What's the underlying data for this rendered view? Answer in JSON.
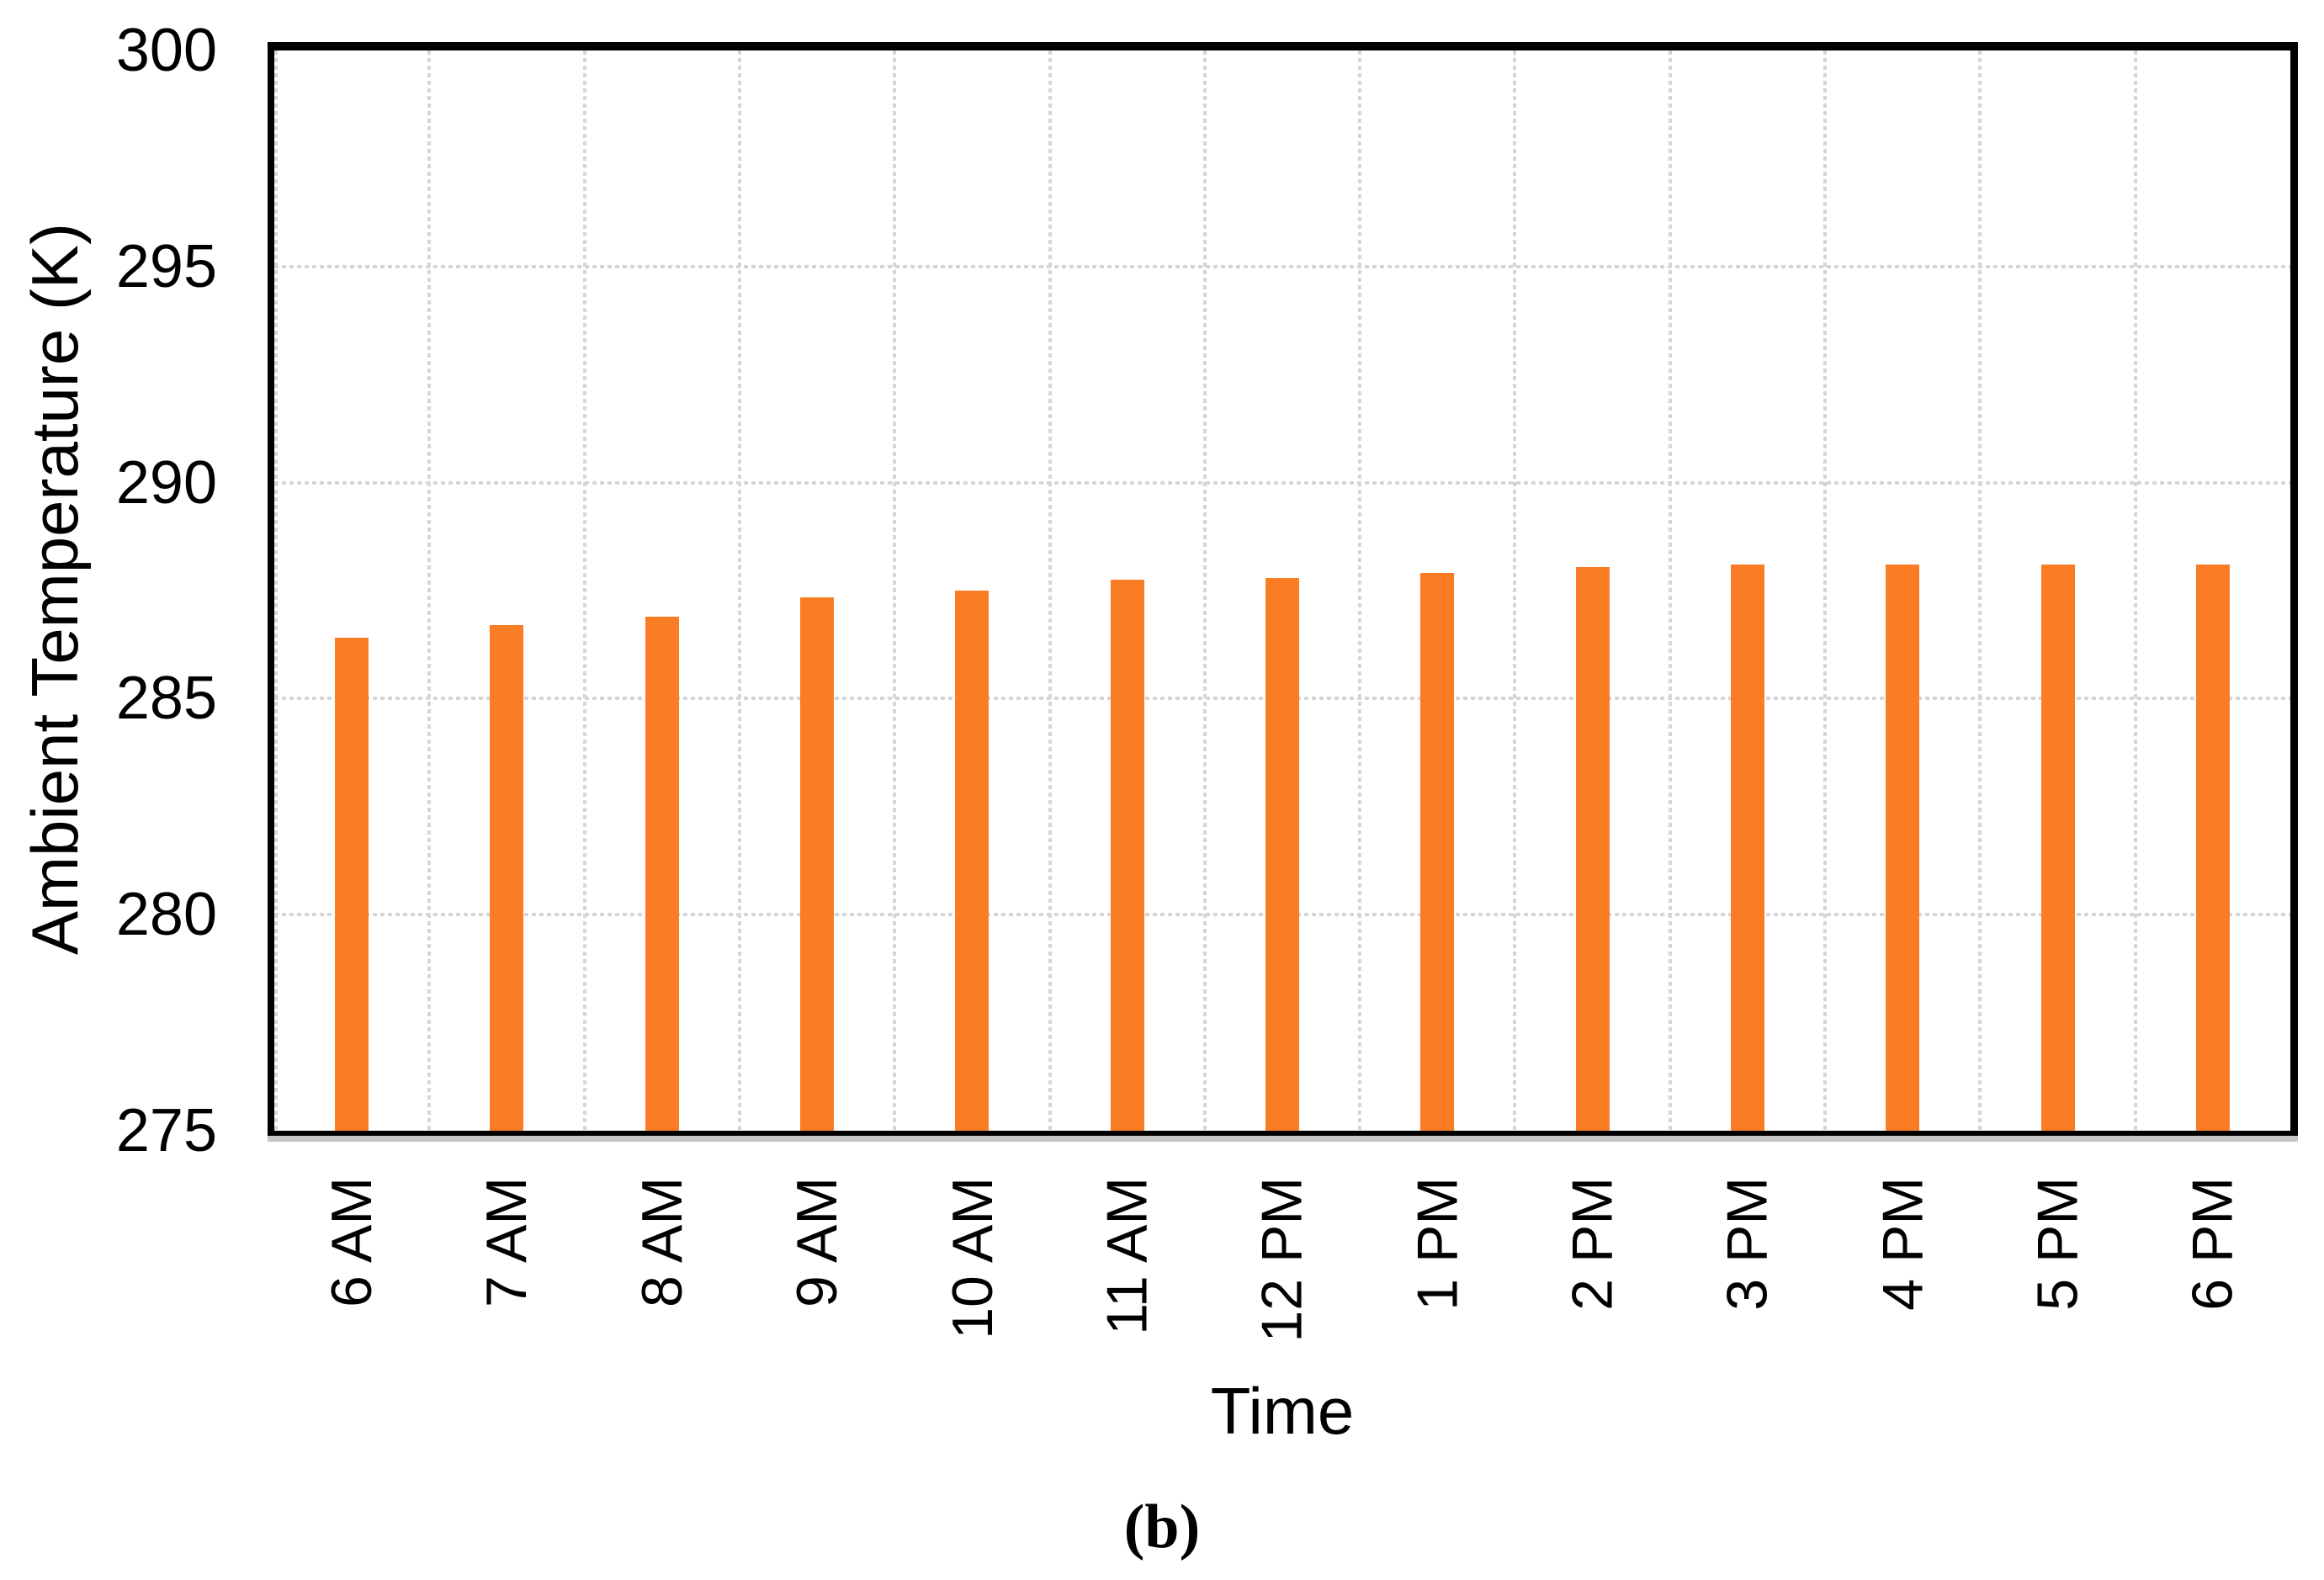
{
  "figure": {
    "caption": "(b)"
  },
  "chart_data": {
    "type": "bar",
    "title": "",
    "xlabel": "Time",
    "ylabel": "Ambient Temperature (K)",
    "categories": [
      "6 AM",
      "7 AM",
      "8 AM",
      "9 AM",
      "10 AM",
      "11 AM",
      "12 PM",
      "1 PM",
      "2 PM",
      "3 PM",
      "4 PM",
      "5 PM",
      "6 PM"
    ],
    "values": [
      286.4,
      286.7,
      286.9,
      287.35,
      287.5,
      287.75,
      287.8,
      287.9,
      288.05,
      288.1,
      288.1,
      288.1,
      288.1
    ],
    "ylim": [
      275,
      300
    ],
    "yticks": [
      300,
      295,
      290,
      285,
      280,
      275
    ],
    "grid": "horizontal and vertical dashed gridlines",
    "legend_position": "none",
    "colors": {
      "bar": "#FA7D26",
      "gridline": "#D6D6D6",
      "axis_border": "#000000",
      "axis_shadow": "#C6C6C6",
      "text": "#000000",
      "background": "#FFFFFF"
    }
  }
}
